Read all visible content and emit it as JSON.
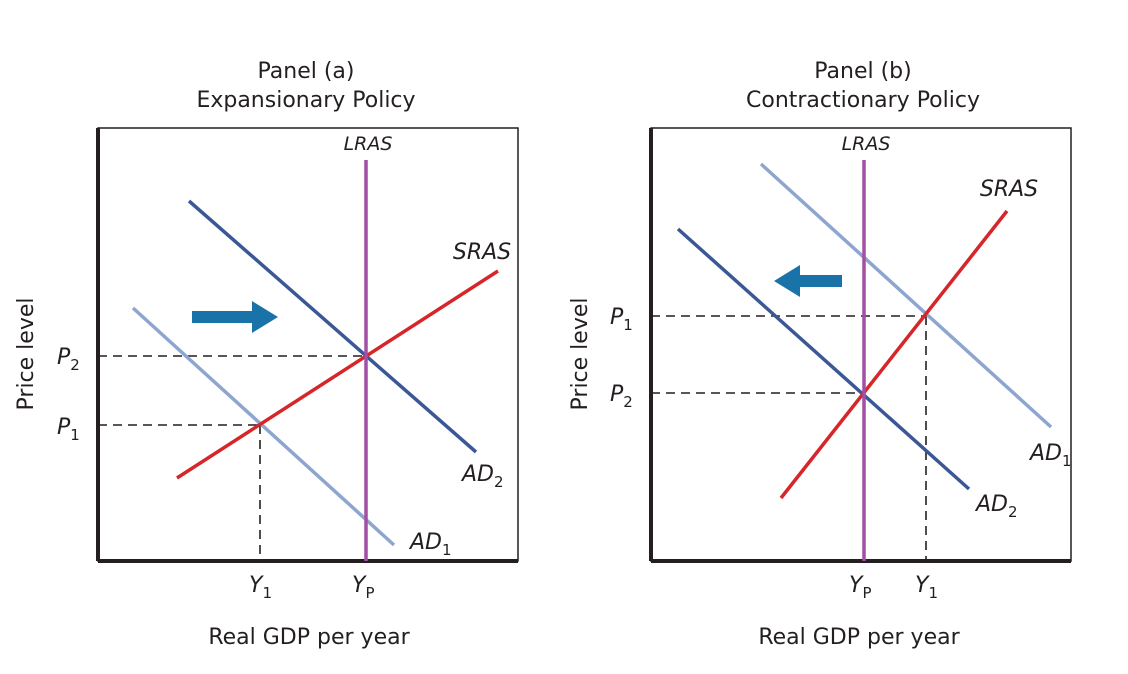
{
  "colors": {
    "ad1": "#8ea6cf",
    "ad2": "#3b5796",
    "sras": "#d6262a",
    "lras": "#a24fa6",
    "arrow": "#1a73a8",
    "frame": "#231f20"
  },
  "panels": [
    {
      "id": "a",
      "title_line1": "Panel (a)",
      "title_line2": "Expansionary Policy",
      "ylabel": "Price level",
      "xlabel": "Real GDP per year",
      "lras_label": "LRAS",
      "sras_label": "SRAS",
      "ad1": {
        "letter": "AD",
        "sub": "1"
      },
      "ad2": {
        "letter": "AD",
        "sub": "2"
      },
      "p_upper": {
        "letter": "P",
        "sub": "2"
      },
      "p_lower": {
        "letter": "P",
        "sub": "1"
      },
      "y_left": {
        "letter": "Y",
        "sub": "1"
      },
      "y_right": {
        "letter": "Y",
        "sub": "P"
      },
      "arrow_icon": "right-arrow-icon"
    },
    {
      "id": "b",
      "title_line1": "Panel (b)",
      "title_line2": "Contractionary Policy",
      "ylabel": "Price level",
      "xlabel": "Real GDP per year",
      "lras_label": "LRAS",
      "sras_label": "SRAS",
      "ad1": {
        "letter": "AD",
        "sub": "1"
      },
      "ad2": {
        "letter": "AD",
        "sub": "2"
      },
      "p_upper": {
        "letter": "P",
        "sub": "1"
      },
      "p_lower": {
        "letter": "P",
        "sub": "2"
      },
      "y_left": {
        "letter": "Y",
        "sub": "P"
      },
      "y_right": {
        "letter": "Y",
        "sub": "1"
      },
      "arrow_icon": "left-arrow-icon"
    }
  ]
}
